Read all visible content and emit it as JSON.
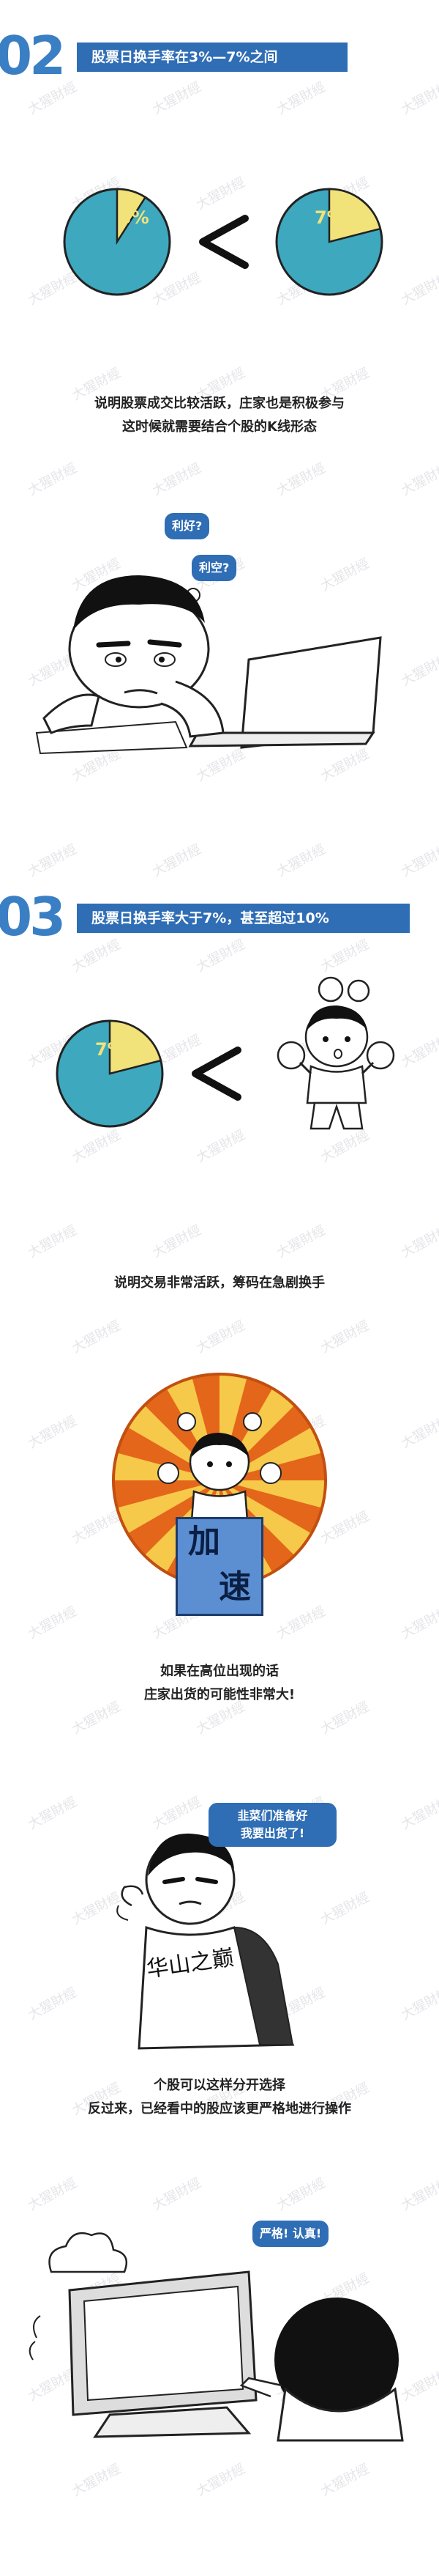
{
  "colors": {
    "pie_fill": "#3ea8be",
    "pie_slice": "#f2e27a",
    "accent": "#2f6db5",
    "number": "#3a7fc4"
  },
  "watermark": "大猩財經",
  "section2": {
    "number": "02",
    "title": "股票日换手率在3%—7%之间",
    "pie_left_label": "3%",
    "pie_right_label": "7%",
    "pie_left_value": 3,
    "pie_right_value": 7,
    "caption_lines": [
      "说明股票成交比较活跃，庄家也是积极参与",
      "这时候就需要结合个股的K线形态"
    ],
    "bubble_1": "利好?",
    "bubble_2": "利空?"
  },
  "section3": {
    "number": "03",
    "title": "股票日换手率大于7%，甚至超过10%",
    "pie_label": "7%",
    "pie_value": 7,
    "caption_1": "说明交易非常活跃，筹码在急剧换手",
    "sign_char_1": "加",
    "sign_char_2": "速",
    "caption_2_lines": [
      "如果在高位出现的话",
      "庄家出货的可能性非常大!"
    ],
    "speech_lines": [
      "韭菜们准备好",
      "我要出货了!"
    ],
    "robe_text": "华山之巅",
    "caption_3_lines": [
      "个股可以这样分开选择",
      "反过来，已经看中的股应该更严格地进行操作"
    ],
    "speech_final": "严格! 认真!"
  }
}
